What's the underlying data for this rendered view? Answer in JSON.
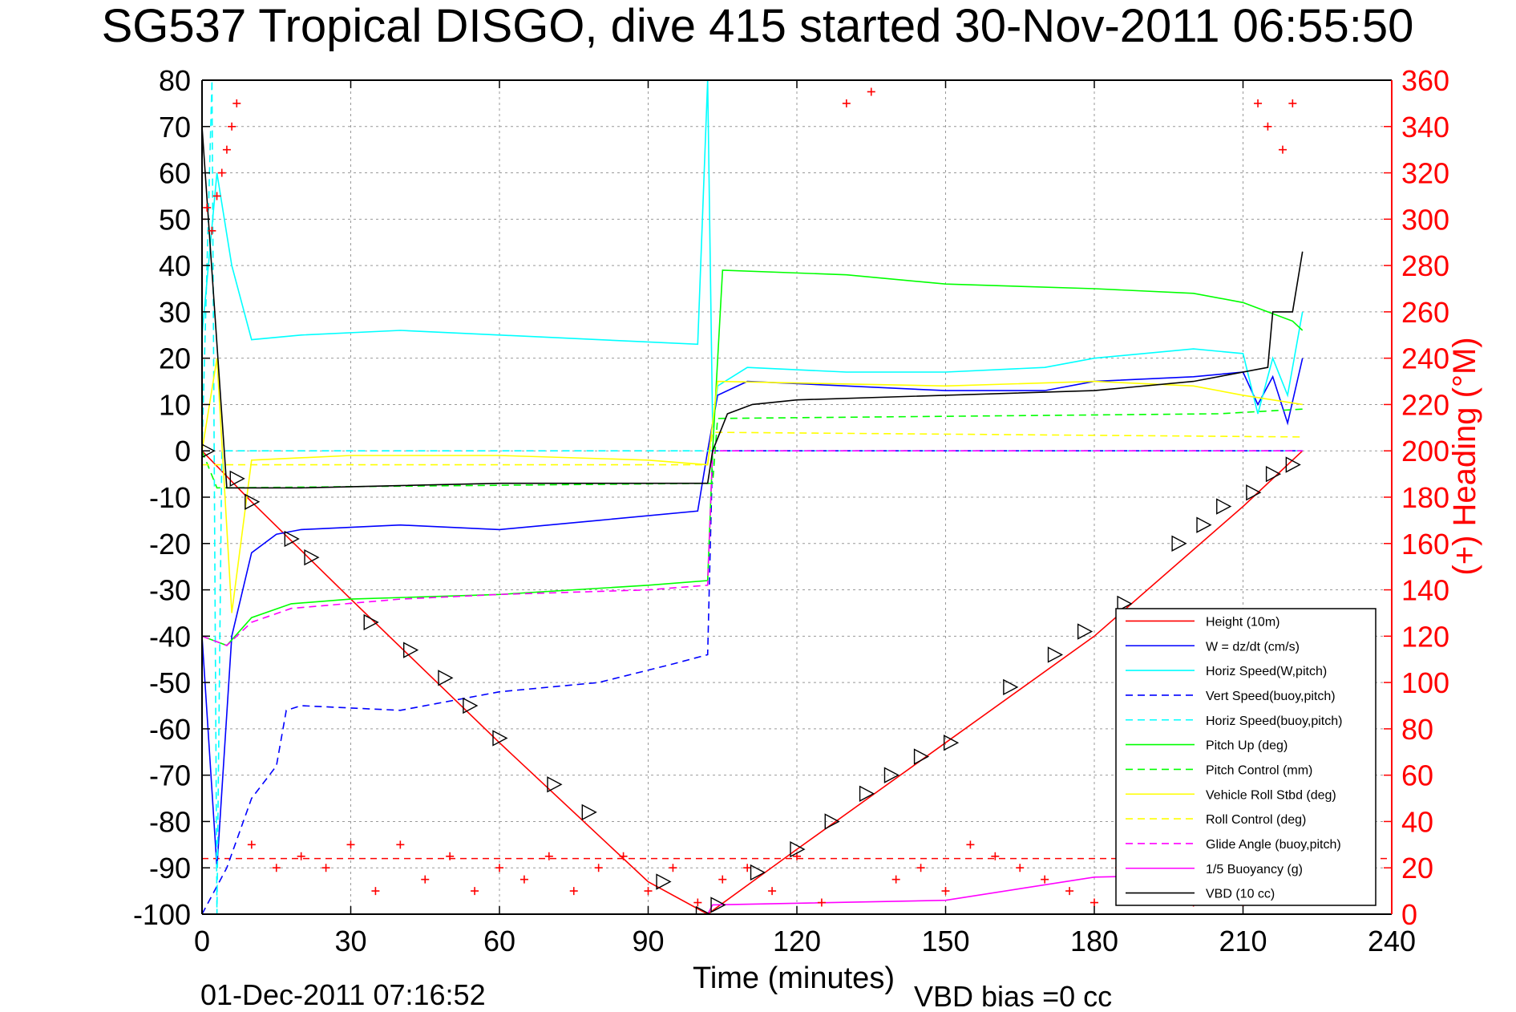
{
  "title": "SG537 Tropical DISGO, dive 415 started 30-Nov-2011 06:55:50",
  "footer": {
    "timestamp": "01-Dec-2011 07:16:52",
    "vbd_bias": "VBD bias =0 cc"
  },
  "colors": {
    "red": "#ff0000",
    "blue": "#0000ff",
    "cyan": "#00ffff",
    "green": "#00ff00",
    "yellow": "#ffff00",
    "magenta": "#ff00ff",
    "black": "#000000"
  },
  "chart_data": {
    "type": "line",
    "xlabel": "Time (minutes)",
    "ylabel_left": "",
    "ylabel_right": "(+) Heading (°M)",
    "xlim": [
      0,
      240
    ],
    "ylim_left": [
      -100,
      80
    ],
    "ylim_right": [
      0,
      360
    ],
    "xticks": [
      "0",
      "30",
      "60",
      "90",
      "120",
      "150",
      "180",
      "210",
      "240"
    ],
    "yticks_left": [
      "80",
      "70",
      "60",
      "50",
      "40",
      "30",
      "20",
      "10",
      "0",
      "-10",
      "-20",
      "-30",
      "-40",
      "-50",
      "-60",
      "-70",
      "-80",
      "-90",
      "-100"
    ],
    "yticks_right": [
      "360",
      "340",
      "320",
      "300",
      "280",
      "260",
      "240",
      "220",
      "200",
      "180",
      "160",
      "140",
      "120",
      "100",
      "80",
      "60",
      "40",
      "20",
      "0"
    ],
    "grid": true,
    "legend_position": "lower-right",
    "legend": [
      {
        "label": "Height (10m)",
        "color": "#ff0000",
        "style": "solid"
      },
      {
        "label": "W = dz/dt (cm/s)",
        "color": "#0000ff",
        "style": "solid"
      },
      {
        "label": "Horiz Speed(W,pitch)",
        "color": "#00ffff",
        "style": "solid"
      },
      {
        "label": "Vert Speed(buoy,pitch)",
        "color": "#0000ff",
        "style": "dashed"
      },
      {
        "label": "Horiz Speed(buoy,pitch)",
        "color": "#00ffff",
        "style": "dashed"
      },
      {
        "label": "Pitch Up (deg)",
        "color": "#00ff00",
        "style": "solid"
      },
      {
        "label": "Pitch Control (mm)",
        "color": "#00ff00",
        "style": "dashed"
      },
      {
        "label": "Vehicle Roll Stbd (deg)",
        "color": "#ffff00",
        "style": "solid"
      },
      {
        "label": "Roll Control (deg)",
        "color": "#ffff00",
        "style": "dashed"
      },
      {
        "label": "Glide Angle (buoy,pitch)",
        "color": "#ff00ff",
        "style": "dashed"
      },
      {
        "label": "1/5 Buoyancy (g)",
        "color": "#ff00ff",
        "style": "solid"
      },
      {
        "label": "VBD (10 cc)",
        "color": "#000000",
        "style": "solid"
      }
    ],
    "series": [
      {
        "name": "Height (10m)",
        "color": "#ff0000",
        "style": "solid",
        "x": [
          0,
          10,
          30,
          60,
          90,
          102,
          120,
          150,
          180,
          210,
          222
        ],
        "y": [
          0,
          -11,
          -32,
          -63,
          -93,
          -100,
          -86,
          -63,
          -40,
          -12,
          0
        ]
      },
      {
        "name": "W = dz/dt (cm/s)",
        "color": "#0000ff",
        "style": "solid",
        "x": [
          0,
          3,
          6,
          10,
          15,
          20,
          40,
          60,
          80,
          100,
          102,
          104,
          110,
          130,
          150,
          170,
          180,
          200,
          210,
          213,
          216,
          219,
          222
        ],
        "y": [
          -40,
          -90,
          -40,
          -22,
          -18,
          -17,
          -16,
          -17,
          -15,
          -13,
          0,
          12,
          15,
          14,
          13,
          13,
          15,
          16,
          17,
          10,
          16,
          6,
          20
        ]
      },
      {
        "name": "Horiz Speed(W,pitch)",
        "color": "#00ffff",
        "style": "solid",
        "x": [
          0,
          3,
          6,
          10,
          20,
          40,
          60,
          80,
          100,
          102,
          103,
          104,
          110,
          130,
          150,
          170,
          180,
          200,
          210,
          213,
          216,
          219,
          222
        ],
        "y": [
          25,
          60,
          40,
          24,
          25,
          26,
          25,
          24,
          23,
          80,
          5,
          14,
          18,
          17,
          17,
          18,
          20,
          22,
          21,
          8,
          20,
          12,
          30
        ]
      },
      {
        "name": "Vert Speed(buoy,pitch)",
        "color": "#0000ff",
        "style": "dashed",
        "x": [
          0,
          5,
          10,
          15,
          17,
          20,
          40,
          60,
          80,
          95,
          102,
          103,
          104,
          222
        ],
        "y": [
          -100,
          -90,
          -75,
          -68,
          -56,
          -55,
          -56,
          -52,
          -50,
          -46,
          -44,
          0,
          0,
          0
        ]
      },
      {
        "name": "Horiz Speed(buoy,pitch)",
        "color": "#00ffff",
        "style": "dashed",
        "x": [
          0,
          2,
          3,
          4,
          222
        ],
        "y": [
          0,
          80,
          -100,
          0,
          0
        ]
      },
      {
        "name": "Pitch Up (deg)",
        "color": "#00ff00",
        "style": "solid",
        "x": [
          0,
          5,
          10,
          18,
          30,
          60,
          90,
          102,
          103,
          105,
          130,
          150,
          180,
          200,
          210,
          215,
          220,
          222
        ],
        "y": [
          -40,
          -42,
          -36,
          -33,
          -32,
          -31,
          -29,
          -28,
          0,
          39,
          38,
          36,
          35,
          34,
          32,
          30,
          28,
          26
        ]
      },
      {
        "name": "Pitch Control (mm)",
        "color": "#00ff00",
        "style": "dashed",
        "x": [
          0,
          3,
          103,
          104,
          205,
          222
        ],
        "y": [
          0,
          -8,
          -7,
          7,
          8,
          9
        ]
      },
      {
        "name": "Vehicle Roll Stbd (deg)",
        "color": "#ffff00",
        "style": "solid",
        "x": [
          0,
          3,
          6,
          10,
          30,
          60,
          90,
          102,
          104,
          150,
          180,
          200,
          210,
          222
        ],
        "y": [
          0,
          20,
          -35,
          -2,
          -1,
          -1,
          -2,
          -3,
          15,
          14,
          15,
          14,
          12,
          10
        ]
      },
      {
        "name": "Roll Control (deg)",
        "color": "#ffff00",
        "style": "dashed",
        "x": [
          0,
          102,
          103,
          222
        ],
        "y": [
          -3,
          -3,
          4,
          3
        ]
      },
      {
        "name": "Glide Angle (buoy,pitch)",
        "color": "#ff00ff",
        "style": "dashed",
        "x": [
          0,
          5,
          10,
          18,
          40,
          60,
          90,
          102,
          103,
          222
        ],
        "y": [
          -40,
          -42,
          -37,
          -34,
          -32,
          -31,
          -30,
          -29,
          0,
          0
        ]
      },
      {
        "name": "1/5 Buoyancy (g)",
        "color": "#ff00ff",
        "style": "solid",
        "x": [
          0,
          102,
          103,
          150,
          180,
          222
        ],
        "y": [
          -100,
          -100,
          -98,
          -97,
          -92,
          -91
        ]
      },
      {
        "name": "VBD (10 cc)",
        "color": "#000000",
        "style": "solid",
        "x": [
          0,
          5,
          10,
          20,
          60,
          90,
          102,
          103,
          106,
          111,
          120,
          180,
          200,
          215,
          216,
          220,
          222
        ],
        "y": [
          70,
          -8,
          -8,
          -8,
          -7,
          -7,
          -7,
          0,
          8,
          10,
          11,
          13,
          15,
          18,
          30,
          30,
          43
        ]
      }
    ],
    "markers": {
      "name": "Height bin markers",
      "x": [
        1,
        7,
        10,
        18,
        22,
        34,
        42,
        49,
        54,
        60,
        71,
        78,
        93,
        101,
        104,
        112,
        120,
        127,
        134,
        139,
        145,
        151,
        163,
        172,
        178,
        186,
        197,
        202,
        206,
        212,
        216,
        220
      ],
      "y": [
        0,
        -6,
        -11,
        -19,
        -23,
        -37,
        -43,
        -49,
        -55,
        -62,
        -72,
        -78,
        -93,
        -100,
        -98,
        -91,
        -86,
        -80,
        -74,
        -70,
        -66,
        -63,
        -51,
        -44,
        -39,
        -33,
        -20,
        -16,
        -12,
        -9,
        -5,
        -3
      ]
    },
    "heading": {
      "name": "(+) Heading",
      "color": "#ff0000",
      "scatter_x": [
        0,
        1,
        2,
        3,
        4,
        5,
        6,
        7,
        10,
        15,
        20,
        25,
        30,
        35,
        40,
        45,
        50,
        55,
        60,
        65,
        70,
        75,
        80,
        85,
        90,
        95,
        100,
        105,
        110,
        115,
        120,
        125,
        130,
        135,
        140,
        145,
        150,
        155,
        160,
        165,
        170,
        175,
        180,
        185,
        190,
        195,
        200,
        205,
        210,
        213,
        215,
        218,
        220
      ],
      "scatter_y": [
        300,
        305,
        295,
        310,
        320,
        330,
        340,
        350,
        30,
        20,
        25,
        20,
        30,
        10,
        30,
        15,
        25,
        10,
        20,
        15,
        25,
        10,
        20,
        25,
        10,
        20,
        5,
        15,
        20,
        10,
        25,
        5,
        350,
        355,
        15,
        20,
        10,
        30,
        25,
        20,
        15,
        10,
        5,
        20,
        10,
        15,
        5,
        10,
        5,
        350,
        340,
        330,
        350
      ],
      "reference_line": 24
    }
  }
}
